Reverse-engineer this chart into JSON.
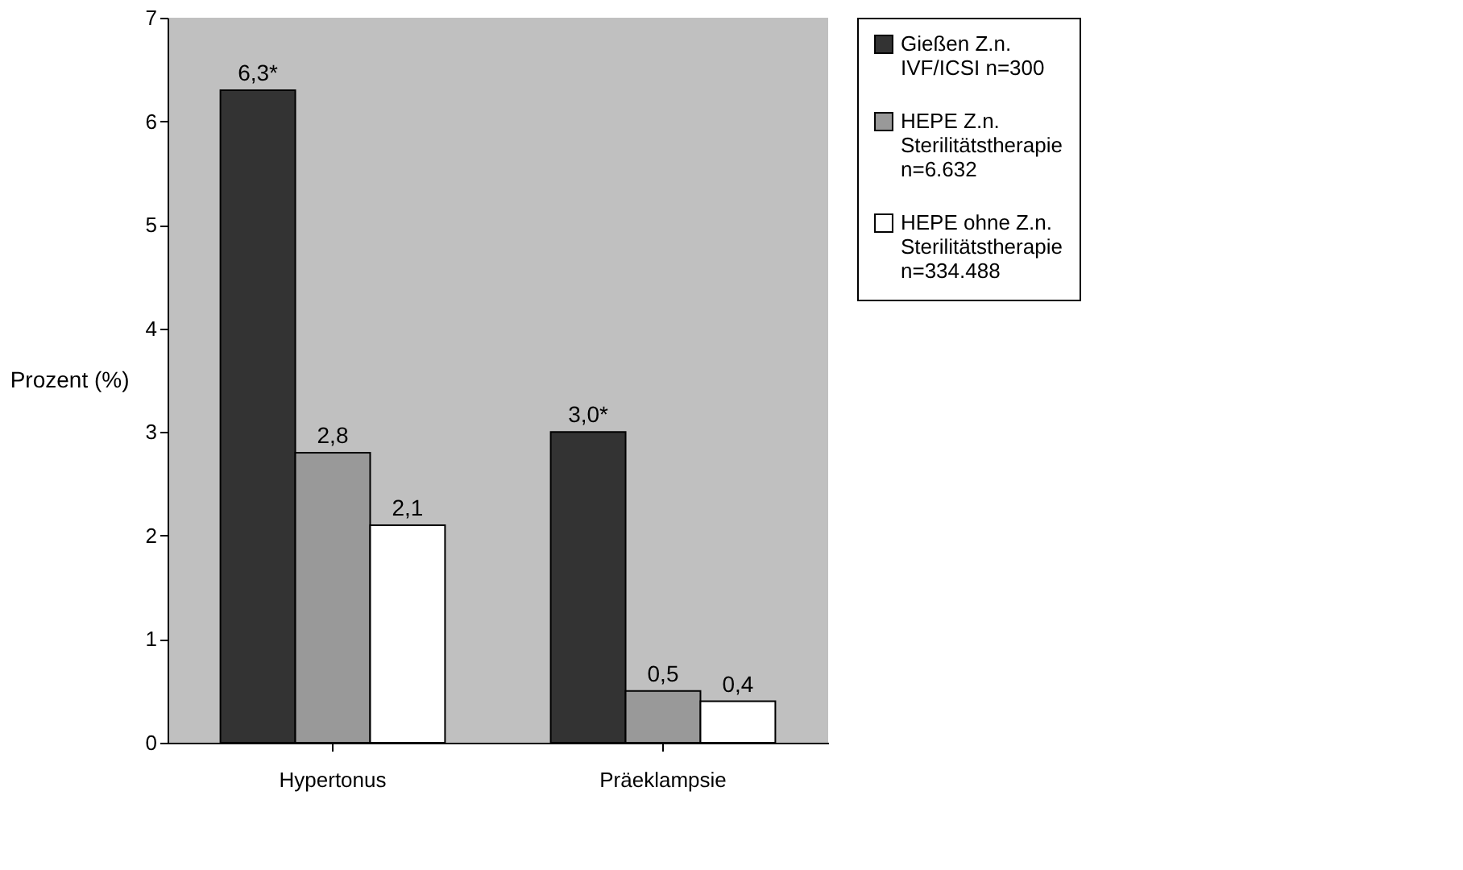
{
  "chart_data": {
    "type": "bar",
    "ylabel": "Prozent (%)",
    "categories": [
      "Hypertonus",
      "Präeklampsie"
    ],
    "series": [
      {
        "name": "Gießen Z.n.\nIVF/ICSI  n=300",
        "color": "#333333",
        "values": [
          6.3,
          3.0
        ],
        "value_labels": [
          "6,3*",
          "3,0*"
        ]
      },
      {
        "name": "HEPE Z.n.\nSterilitätstherapie\nn=6.632",
        "color": "#999999",
        "values": [
          2.8,
          0.5
        ],
        "value_labels": [
          "2,8",
          "0,5"
        ]
      },
      {
        "name": "HEPE ohne Z.n.\nSterilitätstherapie\nn=334.488",
        "color": "#ffffff",
        "values": [
          2.1,
          0.4
        ],
        "value_labels": [
          "2,1",
          "0,4"
        ]
      }
    ],
    "ylim": [
      0,
      7
    ],
    "yticks": [
      0,
      1,
      2,
      3,
      4,
      5,
      6,
      7
    ],
    "grid": false,
    "legend": "right"
  }
}
